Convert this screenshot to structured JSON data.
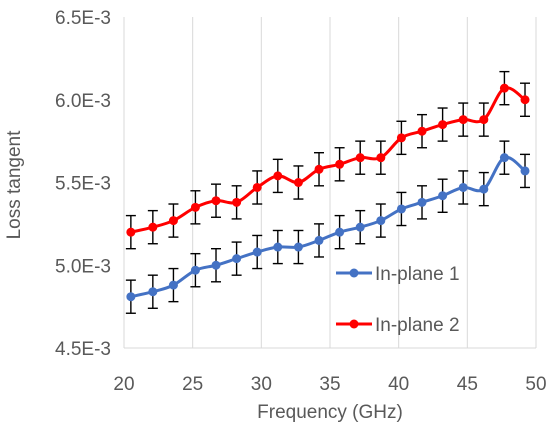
{
  "chart_data": {
    "type": "line",
    "title": "",
    "xlabel": "Frequency (GHz)",
    "ylabel": "Loss tangent",
    "xlim": [
      20,
      50
    ],
    "ylim": [
      0.0045,
      0.0065
    ],
    "x_ticks": [
      20,
      25,
      30,
      35,
      40,
      45,
      50
    ],
    "x_tick_labels": [
      "20",
      "25",
      "30",
      "35",
      "40",
      "45",
      "50"
    ],
    "y_ticks": [
      0.0045,
      0.005,
      0.0055,
      0.006,
      0.0065
    ],
    "y_tick_labels": [
      "4.5E-3",
      "5.0E-3",
      "5.5E-3",
      "6.0E-3",
      "6.5E-3"
    ],
    "grid": {
      "x": true,
      "y": false
    },
    "legend": "inside-lower-right",
    "error_bar": 0.0001,
    "x": [
      20.5,
      22.1,
      23.6,
      25.2,
      26.7,
      28.2,
      29.7,
      31.2,
      32.7,
      34.2,
      35.7,
      37.2,
      38.7,
      40.2,
      41.7,
      43.2,
      44.7,
      46.2,
      47.7,
      49.2
    ],
    "series": [
      {
        "name": "In-plane 1",
        "color": "#4472C4",
        "values": [
          0.00481,
          0.00484,
          0.00488,
          0.00497,
          0.005,
          0.00504,
          0.00508,
          0.00511,
          0.00511,
          0.00515,
          0.0052,
          0.00523,
          0.00527,
          0.00534,
          0.00538,
          0.00542,
          0.00547,
          0.00546,
          0.00565,
          0.00557
        ]
      },
      {
        "name": "In-plane 2",
        "color": "#FF0000",
        "values": [
          0.0052,
          0.00523,
          0.00527,
          0.00535,
          0.00539,
          0.00538,
          0.00547,
          0.00554,
          0.0055,
          0.00558,
          0.00561,
          0.00565,
          0.00565,
          0.00577,
          0.00581,
          0.00585,
          0.00588,
          0.00588,
          0.00607,
          0.006
        ]
      }
    ]
  }
}
